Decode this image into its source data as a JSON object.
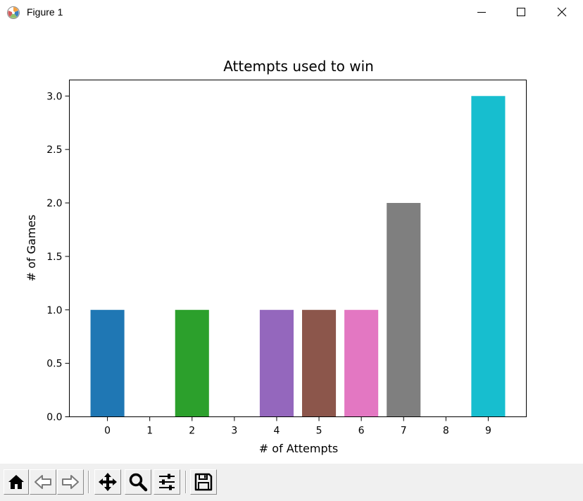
{
  "window": {
    "title": "Figure 1",
    "app_icon": "matplotlib-figure-icon",
    "controls": [
      "minimize-icon",
      "maximize-icon",
      "close-icon"
    ]
  },
  "chart_data": {
    "type": "bar",
    "title": "Attempts used to win",
    "xlabel": "# of Attempts",
    "ylabel": "# of Games",
    "categories": [
      "0",
      "1",
      "2",
      "3",
      "4",
      "5",
      "6",
      "7",
      "8",
      "9"
    ],
    "values": [
      1,
      0,
      1,
      0,
      1,
      1,
      1,
      2,
      0,
      3
    ],
    "colors": [
      "#1f77b4",
      "#ff7f0e",
      "#2ca02c",
      "#d62728",
      "#9467bd",
      "#8c564b",
      "#e377c2",
      "#7f7f7f",
      "#bcbd22",
      "#17becf"
    ],
    "ylim": [
      0,
      3.15
    ],
    "yticks": [
      "0.0",
      "0.5",
      "1.0",
      "1.5",
      "2.0",
      "2.5",
      "3.0"
    ],
    "ytick_values": [
      0,
      0.5,
      1.0,
      1.5,
      2.0,
      2.5,
      3.0
    ],
    "grid": false,
    "legend": "none"
  },
  "toolbar": {
    "buttons": [
      {
        "name": "home-button",
        "icon": "home-icon"
      },
      {
        "name": "back-button",
        "icon": "arrow-left-icon"
      },
      {
        "name": "forward-button",
        "icon": "arrow-right-icon"
      },
      {
        "name": "pan-button",
        "icon": "move-arrows-icon"
      },
      {
        "name": "zoom-button",
        "icon": "magnifier-icon"
      },
      {
        "name": "configure-subplots-button",
        "icon": "sliders-icon"
      },
      {
        "name": "save-button",
        "icon": "floppy-disk-icon"
      }
    ]
  }
}
